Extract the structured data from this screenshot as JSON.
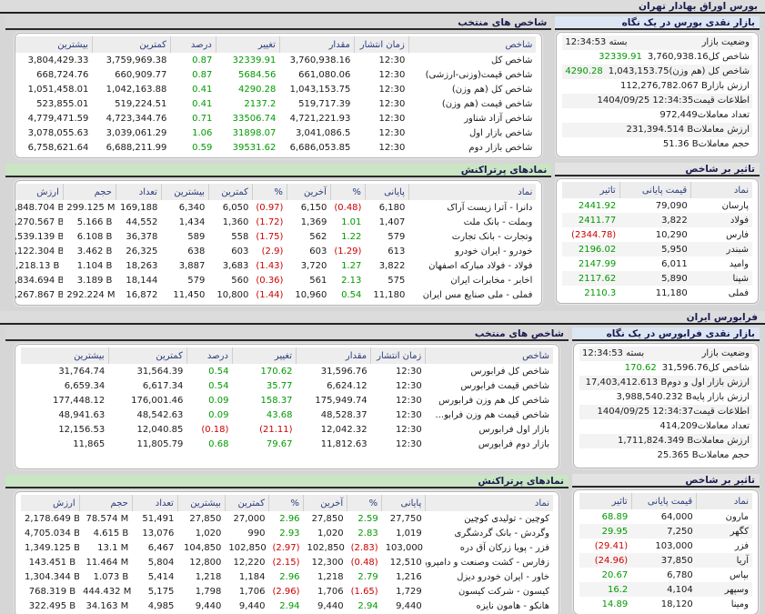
{
  "page_title": "بورس اوراق بهادار تهران",
  "colors": {
    "positive": "#009900",
    "negative": "#cc0000",
    "header_text": "#1b1b4f",
    "glance_header_bg": "#dce6f3",
    "active_header_bg": "#c9e5c3"
  },
  "sections": [
    {
      "name": "بورس اوراق بهادار تهران",
      "glance": {
        "title": "بازار نقدی بورس در یک نگاه",
        "rows": [
          {
            "label": "وضعیت بازار",
            "value": "بسته 12:34:53",
            "change": ""
          },
          {
            "label": "شاخص کل",
            "value": "3,760,938.16",
            "change": "32339.91"
          },
          {
            "label": "شاخص کل (هم وزن)",
            "value": "1,043,153.75",
            "change": "4290.28"
          },
          {
            "label": "ارزش بازار",
            "value": "112,276,782.067 B",
            "change": ""
          },
          {
            "label": "اطلاعات قیمت",
            "value": "1404/09/25 12:34:35",
            "change": ""
          },
          {
            "label": "تعداد معاملات",
            "value": "972,449",
            "change": ""
          },
          {
            "label": "ارزش معاملات",
            "value": "231,394.514 B",
            "change": ""
          },
          {
            "label": "حجم معاملات",
            "value": "51.36 B",
            "change": ""
          }
        ]
      },
      "indices": {
        "title": "شاخص های منتخب",
        "columns": [
          "شاخص",
          "زمان انتشار",
          "مقدار",
          "تغییر",
          "درصد",
          "کمترین",
          "بیشترین"
        ],
        "rows": [
          [
            "شاخص کل",
            "12:30",
            "3,760,938.16",
            "32339.91",
            "0.87",
            "3,759,969.38",
            "3,804,429.33"
          ],
          [
            "شاخص قیمت(وزنی-ارزشی)",
            "12:30",
            "661,080.06",
            "5684.56",
            "0.87",
            "660,909.77",
            "668,724.76"
          ],
          [
            "شاخص کل (هم وزن)",
            "12:30",
            "1,043,153.75",
            "4290.28",
            "0.41",
            "1,042,163.88",
            "1,051,458.01"
          ],
          [
            "شاخص قیمت (هم وزن)",
            "12:30",
            "519,717.39",
            "2137.2",
            "0.41",
            "519,224.51",
            "523,855.01"
          ],
          [
            "شاخص آزاد شناور",
            "12:30",
            "4,721,221.93",
            "33506.74",
            "0.71",
            "4,723,344.76",
            "4,779,471.59"
          ],
          [
            "شاخص بازار اول",
            "12:30",
            "3,041,086.5",
            "31898.07",
            "1.06",
            "3,039,061.29",
            "3,078,055.63"
          ],
          [
            "شاخص بازار دوم",
            "12:30",
            "6,686,053.85",
            "39531.62",
            "0.59",
            "6,688,211.99",
            "6,758,621.64"
          ]
        ]
      },
      "active": {
        "title": "نمادهای پرتراکنش",
        "columns": [
          "نماد",
          "پایانی",
          "%",
          "آخرین",
          "%",
          "کمترین",
          "بیشترین",
          "تعداد",
          "حجم",
          "ارزش"
        ],
        "rows": [
          [
            "دانرا - آترا زیست آراک",
            "6,180",
            "(0.48)",
            "6,150",
            "(0.97)",
            "6,050",
            "6,340",
            "169,188",
            "299.125 M",
            "1,848.704 B"
          ],
          [
            "وبملت - بانک ملت",
            "1,407",
            "1.01",
            "1,369",
            "(1.72)",
            "1,360",
            "1,434",
            "44,552",
            "5.166 B",
            "7,270.567 B"
          ],
          [
            "وتجارت - بانک تجارت",
            "579",
            "1.22",
            "562",
            "(1.75)",
            "558",
            "589",
            "36,378",
            "6.108 B",
            "3,539.139 B"
          ],
          [
            "خودرو - ایران خودرو",
            "613",
            "(1.29)",
            "603",
            "(2.9)",
            "603",
            "638",
            "26,325",
            "3.462 B",
            "2,122.304 B"
          ],
          [
            "فولاد - فولاد مبارکه اصفهان",
            "3,822",
            "1.27",
            "3,720",
            "(1.43)",
            "3,683",
            "3,887",
            "18,263",
            "1.104 B",
            "4,218.13 B"
          ],
          [
            "اخابر - مخابرات ایران",
            "575",
            "2.13",
            "561",
            "(0.36)",
            "560",
            "579",
            "18,144",
            "3.189 B",
            "1,834.694 B"
          ],
          [
            "فملی - ملی صنایع مس ایران",
            "11,180",
            "0.54",
            "10,960",
            "(1.44)",
            "10,800",
            "11,450",
            "16,872",
            "292.224 M",
            "3,267.867 B"
          ]
        ]
      },
      "impact": {
        "title": "تاثیر بر شاخص",
        "columns": [
          "نماد",
          "قیمت پایانی",
          "تاثیر"
        ],
        "rows": [
          [
            "پارسان",
            "79,090",
            "2441.92"
          ],
          [
            "فولاد",
            "3,822",
            "2411.77"
          ],
          [
            "فارس",
            "10,290",
            "(2344.78)"
          ],
          [
            "شبندر",
            "5,950",
            "2196.02"
          ],
          [
            "وامید",
            "6,011",
            "2147.99"
          ],
          [
            "شپنا",
            "5,890",
            "2117.62"
          ],
          [
            "فملی",
            "11,180",
            "2110.3"
          ]
        ]
      }
    },
    {
      "name": "فرابورس ایران",
      "glance": {
        "title": "بازار نقدی فرابورس در یک نگاه",
        "rows": [
          {
            "label": "وضعیت بازار",
            "value": "بسته 12:34:53",
            "change": ""
          },
          {
            "label": "شاخص کل",
            "value": "31,596.76",
            "change": "170.62"
          },
          {
            "label": "ارزش بازار اول و دوم",
            "value": "17,403,412.613 B",
            "change": ""
          },
          {
            "label": "ارزش بازار پایه",
            "value": "3,988,540.232 B",
            "change": ""
          },
          {
            "label": "اطلاعات قیمت",
            "value": "1404/09/25 12:34:37",
            "change": ""
          },
          {
            "label": "تعداد معاملات",
            "value": "414,209",
            "change": ""
          },
          {
            "label": "ارزش معاملات",
            "value": "1,711,824.349 B",
            "change": ""
          },
          {
            "label": "حجم معاملات",
            "value": "25.365 B",
            "change": ""
          }
        ]
      },
      "indices": {
        "title": "شاخص های منتخب",
        "columns": [
          "شاخص",
          "زمان انتشار",
          "مقدار",
          "تغییر",
          "درصد",
          "کمترین",
          "بیشترین"
        ],
        "rows": [
          [
            "شاخص کل فرابورس",
            "12:30",
            "31,596.76",
            "170.62",
            "0.54",
            "31,564.39",
            "31,764.74"
          ],
          [
            "شاخص قیمت فرابورس",
            "12:30",
            "6,624.12",
            "35.77",
            "0.54",
            "6,617.34",
            "6,659.34"
          ],
          [
            "شاخص کل هم وزن فرابورس",
            "12:30",
            "175,949.74",
            "158.37",
            "0.09",
            "176,001.46",
            "177,448.12"
          ],
          [
            "شاخص قیمت هم وزن فرابو...",
            "12:30",
            "48,528.37",
            "43.68",
            "0.09",
            "48,542.63",
            "48,941.63"
          ],
          [
            "بازار اول فرابورس",
            "12:30",
            "12,042.32",
            "(21.11)",
            "(0.18)",
            "12,040.85",
            "12,156.53"
          ],
          [
            "بازار دوم فرابورس",
            "12:30",
            "11,812.63",
            "79.67",
            "0.68",
            "11,805.79",
            "11,865"
          ]
        ]
      },
      "active": {
        "title": "نمادهای پرتراکنش",
        "columns": [
          "نماد",
          "پایانی",
          "%",
          "آخرین",
          "%",
          "کمترین",
          "بیشترین",
          "تعداد",
          "حجم",
          "ارزش"
        ],
        "rows": [
          [
            "کوچین - تولیدی کوچین",
            "27,750",
            "2.59",
            "27,850",
            "2.96",
            "27,000",
            "27,850",
            "51,491",
            "78.574 M",
            "2,178.649 B"
          ],
          [
            "وگردش - بانک گردشگری",
            "1,019",
            "2.83",
            "1,020",
            "2.93",
            "990",
            "1,020",
            "13,076",
            "4.615 B",
            "4,705.034 B"
          ],
          [
            "فزر - پویا زرکان آق دره",
            "103,000",
            "(2.83)",
            "102,850",
            "(2.97)",
            "102,850",
            "104,850",
            "6,467",
            "13.1 M",
            "1,349.125 B"
          ],
          [
            "زفارس - کشت وصنعت و دامپروری پ...",
            "12,510",
            "(0.48)",
            "12,300",
            "(2.15)",
            "12,220",
            "12,800",
            "5,804",
            "11.464 M",
            "143.451 B"
          ],
          [
            "خاور - ایران خودرو دیزل",
            "1,216",
            "2.79",
            "1,218",
            "2.96",
            "1,184",
            "1,218",
            "5,414",
            "1.073 B",
            "1,304.344 B"
          ],
          [
            "کیسون - شرکت کیسون",
            "1,729",
            "(1.65)",
            "1,706",
            "(2.96)",
            "1,706",
            "1,798",
            "5,175",
            "444.432 M",
            "768.319 B"
          ],
          [
            "هانکو - هامون نایزه",
            "9,440",
            "2.94",
            "9,440",
            "2.94",
            "9,440",
            "9,440",
            "4,985",
            "34.163 M",
            "322.495 B"
          ]
        ]
      },
      "impact": {
        "title": "تاثیر بر شاخص",
        "columns": [
          "نماد",
          "قیمت پایانی",
          "تاثیر"
        ],
        "rows": [
          [
            "مارون",
            "64,000",
            "68.89"
          ],
          [
            "کگهر",
            "7,250",
            "29.95"
          ],
          [
            "فزر",
            "103,000",
            "(29.41)"
          ],
          [
            "آریا",
            "37,850",
            "(24.96)"
          ],
          [
            "بپاس",
            "6,780",
            "20.67"
          ],
          [
            "وسپهر",
            "4,104",
            "16.2"
          ],
          [
            "ومینا",
            "18,120",
            "14.89"
          ]
        ]
      }
    }
  ]
}
